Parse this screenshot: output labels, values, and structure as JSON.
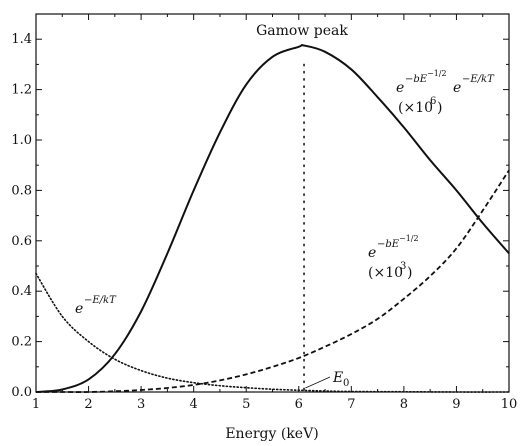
{
  "chart_data": {
    "type": "line",
    "xlabel": "Energy (keV)",
    "ylabel": "",
    "xlim": [
      1,
      10
    ],
    "ylim": [
      0,
      1.5
    ],
    "x_ticks": [
      1,
      2,
      3,
      4,
      5,
      6,
      7,
      8,
      9,
      10
    ],
    "y_ticks": [
      0.0,
      0.2,
      0.4,
      0.6,
      0.8,
      1.0,
      1.2,
      1.4
    ],
    "x_tick_labels": [
      "1",
      "2",
      "3",
      "4",
      "5",
      "6",
      "7",
      "8",
      "9",
      "10"
    ],
    "y_tick_labels": [
      "0.0",
      "0.2",
      "0.4",
      "0.6",
      "0.8",
      "1.0",
      "1.2",
      "1.4"
    ],
    "grid": false,
    "series": [
      {
        "style": "solid",
        "x": [
          1.0,
          1.5,
          2.0,
          2.5,
          3.0,
          3.5,
          4.0,
          4.5,
          5.0,
          5.5,
          6.0,
          6.1,
          6.5,
          7.0,
          7.5,
          8.0,
          8.5,
          9.0,
          9.5,
          10.0
        ],
        "y": [
          0.0,
          0.01,
          0.05,
          0.15,
          0.32,
          0.55,
          0.8,
          1.03,
          1.22,
          1.33,
          1.37,
          1.375,
          1.35,
          1.28,
          1.17,
          1.05,
          0.92,
          0.8,
          0.67,
          0.55
        ]
      },
      {
        "style": "dashed",
        "x": [
          1.0,
          1.5,
          2.0,
          2.5,
          3.0,
          3.5,
          4.0,
          4.5,
          5.0,
          5.5,
          6.0,
          6.5,
          7.0,
          7.5,
          8.0,
          8.5,
          9.0,
          9.5,
          10.0
        ],
        "y": [
          0.0,
          0.0,
          0.0,
          0.003,
          0.008,
          0.016,
          0.028,
          0.046,
          0.07,
          0.1,
          0.135,
          0.18,
          0.23,
          0.29,
          0.37,
          0.46,
          0.57,
          0.72,
          0.88
        ]
      },
      {
        "style": "dotted",
        "x": [
          1.0,
          1.5,
          2.0,
          2.5,
          3.0,
          3.5,
          4.0,
          4.5,
          5.0,
          5.5,
          6.0,
          6.5,
          7.0,
          8.0,
          9.0,
          10.0
        ],
        "y": [
          0.47,
          0.3,
          0.2,
          0.13,
          0.085,
          0.055,
          0.037,
          0.025,
          0.017,
          0.011,
          0.007,
          0.004,
          0.002,
          0.001,
          0.0,
          0.0
        ]
      }
    ],
    "vertical_marker": {
      "x": 6.1,
      "y_top": 1.3,
      "style": "dotted"
    },
    "annotations": {
      "gamow_peak": "Gamow peak",
      "e0_label": "E",
      "e0_sub": "0",
      "e0_arrow_x": 6.05,
      "solid_label_main": "e",
      "solid_label_sup1": "−bE",
      "solid_label_sup2": "−1/2",
      "solid_label_mid": "e",
      "solid_label_sup3": "−E/kT",
      "solid_label_scale": "(×10",
      "solid_label_scale_sup": "6",
      "solid_label_scale_end": ")",
      "dashed_label_main": "e",
      "dashed_label_sup1": "−bE",
      "dashed_label_sup2": "−1/2",
      "dashed_label_scale": "(×10",
      "dashed_label_scale_sup": "3",
      "dashed_label_scale_end": ")",
      "dotted_label_main": "e",
      "dotted_label_sup": "−E/kT"
    }
  }
}
